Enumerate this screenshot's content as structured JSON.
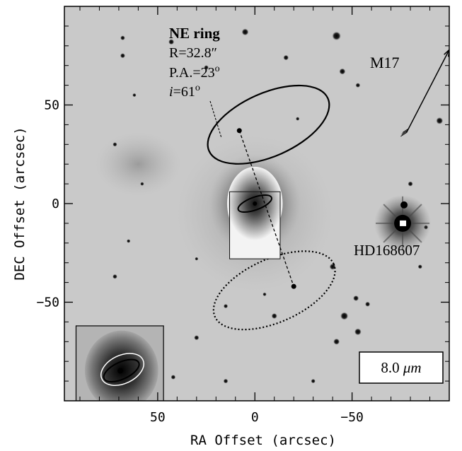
{
  "chart_data": {
    "type": "image",
    "xlabel": "RA Offset (arcsec)",
    "ylabel": "DEC Offset (arcsec)",
    "xlim": [
      98,
      -100
    ],
    "ylim": [
      -100,
      100
    ],
    "xticks": [
      {
        "value": 50,
        "label": "50"
      },
      {
        "value": 0,
        "label": "0"
      },
      {
        "value": -50,
        "label": "−50"
      }
    ],
    "yticks": [
      {
        "value": 50,
        "label": "50"
      },
      {
        "value": 0,
        "label": "0"
      },
      {
        "value": -50,
        "label": "−50"
      }
    ],
    "stars": [
      {
        "x": 5,
        "y": 87,
        "r": 2.2
      },
      {
        "x": -42,
        "y": 85,
        "r": 2.8
      },
      {
        "x": -45,
        "y": 67,
        "r": 2
      },
      {
        "x": 43,
        "y": 82,
        "r": 1.8
      },
      {
        "x": 68,
        "y": 84,
        "r": 1.5
      },
      {
        "x": 68,
        "y": 75,
        "r": 1.6
      },
      {
        "x": 72,
        "y": 30,
        "r": 1.4
      },
      {
        "x": 25,
        "y": 69,
        "r": 1.5
      },
      {
        "x": -16,
        "y": 74,
        "r": 1.7
      },
      {
        "x": -53,
        "y": 60,
        "r": 1.5
      },
      {
        "x": -95,
        "y": 42,
        "r": 2.2
      },
      {
        "x": -80,
        "y": 10,
        "r": 1.6
      },
      {
        "x": -40,
        "y": -32,
        "r": 2
      },
      {
        "x": -52,
        "y": -48,
        "r": 1.8
      },
      {
        "x": -58,
        "y": -51,
        "r": 1.6
      },
      {
        "x": -46,
        "y": -57,
        "r": 2.5
      },
      {
        "x": -53,
        "y": -65,
        "r": 2.2
      },
      {
        "x": -42,
        "y": -70,
        "r": 2
      },
      {
        "x": -65,
        "y": -88,
        "r": 1.7
      },
      {
        "x": -75,
        "y": -90,
        "r": 1.8
      },
      {
        "x": -88,
        "y": -84,
        "r": 2
      },
      {
        "x": -10,
        "y": -57,
        "r": 1.8
      },
      {
        "x": -30,
        "y": -90,
        "r": 1.4
      },
      {
        "x": 15,
        "y": -90,
        "r": 1.5
      },
      {
        "x": 30,
        "y": -68,
        "r": 1.6
      },
      {
        "x": 42,
        "y": -88,
        "r": 1.5
      },
      {
        "x": 72,
        "y": -37,
        "r": 1.5
      },
      {
        "x": 65,
        "y": -19,
        "r": 1.2
      },
      {
        "x": 30,
        "y": -28,
        "r": 1.1
      },
      {
        "x": 58,
        "y": 10,
        "r": 1.2
      },
      {
        "x": -22,
        "y": 43,
        "r": 1.2
      },
      {
        "x": -88,
        "y": -12,
        "r": 1.4
      },
      {
        "x": -85,
        "y": -32,
        "r": 1.4
      },
      {
        "x": 15,
        "y": -52,
        "r": 1.4
      },
      {
        "x": 62,
        "y": 55,
        "r": 1.2
      },
      {
        "x": -5,
        "y": -46,
        "r": 1.2
      }
    ],
    "annotations": {
      "ring_title": "NE ring",
      "ring_radius": "R=32.8″",
      "ring_pa_prefix": "P.A.=23",
      "ring_incl_prefix": "i",
      "ring_incl_value": "=61",
      "degree_symbol": "o",
      "m17_label": "M17",
      "star_label": "HD168607",
      "wavelength_prefix": "8.0 ",
      "wavelength_unit": "μm"
    },
    "features": {
      "center": {
        "x": 0,
        "y": 0
      },
      "ne_ring": {
        "x": -7,
        "y": 40,
        "semi_major": 32.8,
        "semi_minor": 16,
        "pa": 23
      },
      "sw_ring": {
        "x": -10,
        "y": -44,
        "semi_major": 32.8,
        "semi_minor": 16,
        "pa": 23
      },
      "ne_marker": {
        "x": 8,
        "y": 37
      },
      "sw_marker": {
        "x": -20,
        "y": -42
      },
      "hd168607": {
        "x": -76,
        "y": -10
      },
      "m17_arrow": {
        "from": {
          "x": -78,
          "y": 36
        },
        "to": {
          "x": -100,
          "y": 78
        }
      },
      "inset_box": {
        "x1": 13,
        "y1": 6,
        "x2": -13,
        "y2": -28
      },
      "thumbnail_box": {
        "x1": 92,
        "y1": -62,
        "x2": 47,
        "y2": -110
      }
    }
  }
}
